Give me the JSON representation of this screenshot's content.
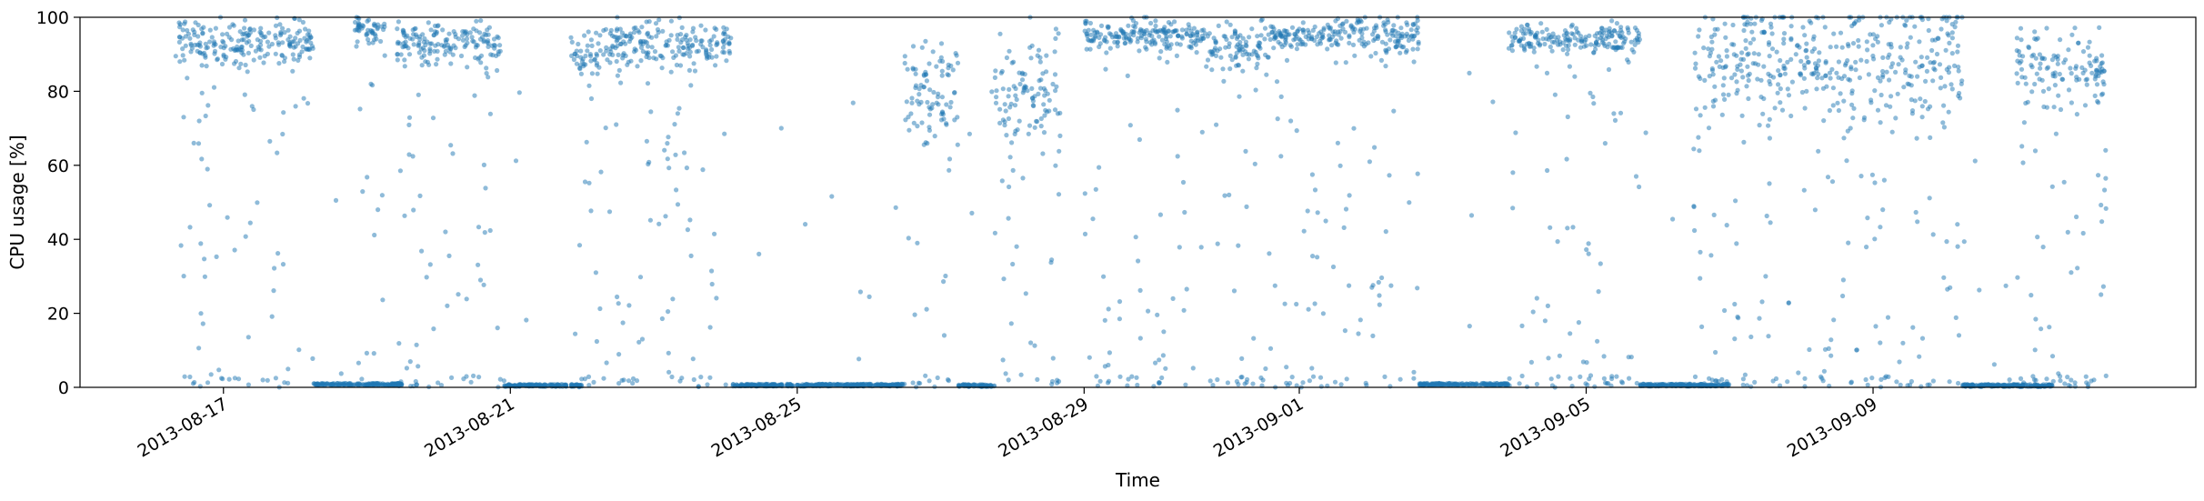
{
  "chart_data": {
    "type": "scatter",
    "title": "",
    "xlabel": "Time",
    "ylabel": "CPU usage [%]",
    "xlim": [
      "2013-08-15T00:00",
      "2013-09-13T12:00"
    ],
    "ylim": [
      0,
      100
    ],
    "x_ticks": [
      "2013-08-17",
      "2013-08-21",
      "2013-08-25",
      "2013-08-29",
      "2013-09-01",
      "2013-09-05",
      "2013-09-09"
    ],
    "y_ticks": [
      0,
      20,
      40,
      60,
      80,
      100
    ],
    "grid": false,
    "legend": "none",
    "marker_color": "#1f77b4",
    "marker_alpha": 0.5,
    "series": [
      {
        "segments": [
          {
            "start": "2013-08-16T08:00",
            "end": "2013-08-18T06:00",
            "mode": "busy",
            "level": 93,
            "band": 3
          },
          {
            "start": "2013-08-18T06:00",
            "end": "2013-08-19T12:00",
            "mode": "idle",
            "level": 0.8
          },
          {
            "start": "2013-08-18T20:00",
            "end": "2013-08-19T06:00",
            "mode": "busy",
            "level": 97,
            "band": 2
          },
          {
            "start": "2013-08-19T10:00",
            "end": "2013-08-20T22:00",
            "mode": "busy",
            "level": 93,
            "band": 3
          },
          {
            "start": "2013-08-20T22:00",
            "end": "2013-08-22T00:00",
            "mode": "idle",
            "level": 0.5
          },
          {
            "start": "2013-08-21T20:00",
            "end": "2013-08-22T06:00",
            "mode": "busy",
            "level": 90,
            "band": 3
          },
          {
            "start": "2013-08-22T06:00",
            "end": "2013-08-24T02:00",
            "mode": "busy",
            "level": 93,
            "band": 3
          },
          {
            "start": "2013-08-24T02:00",
            "end": "2013-08-26T12:00",
            "mode": "idle",
            "level": 0.6
          },
          {
            "start": "2013-08-26T12:00",
            "end": "2013-08-27T06:00",
            "mode": "busy",
            "level": 80,
            "band": 7
          },
          {
            "start": "2013-08-27T06:00",
            "end": "2013-08-27T18:00",
            "mode": "idle",
            "level": 0.5
          },
          {
            "start": "2013-08-27T18:00",
            "end": "2013-08-28T16:00",
            "mode": "busy",
            "level": 80,
            "band": 8
          },
          {
            "start": "2013-08-29T00:00",
            "end": "2013-08-30T18:00",
            "mode": "busy",
            "level": 95,
            "band": 2
          },
          {
            "start": "2013-08-30T18:00",
            "end": "2013-08-31T14:00",
            "mode": "busy",
            "level": 92,
            "band": 3
          },
          {
            "start": "2013-08-31T14:00",
            "end": "2013-09-01T18:00",
            "mode": "busy",
            "level": 95,
            "band": 2
          },
          {
            "start": "2013-09-01T18:00",
            "end": "2013-09-02T16:00",
            "mode": "busy",
            "level": 95,
            "band": 3
          },
          {
            "start": "2013-09-02T16:00",
            "end": "2013-09-03T22:00",
            "mode": "idle",
            "level": 0.8
          },
          {
            "start": "2013-09-03T22:00",
            "end": "2013-09-05T18:00",
            "mode": "busy",
            "level": 94,
            "band": 2
          },
          {
            "start": "2013-09-05T18:00",
            "end": "2013-09-07T00:00",
            "mode": "idle",
            "level": 0.6
          },
          {
            "start": "2013-09-06T12:00",
            "end": "2013-09-10T06:00",
            "mode": "busy",
            "level": 88,
            "band": 8
          },
          {
            "start": "2013-09-10T06:00",
            "end": "2013-09-11T12:00",
            "mode": "idle",
            "level": 0.5
          },
          {
            "start": "2013-09-11T00:00",
            "end": "2013-09-12T06:00",
            "mode": "busy",
            "level": 86,
            "band": 5
          }
        ]
      }
    ]
  }
}
